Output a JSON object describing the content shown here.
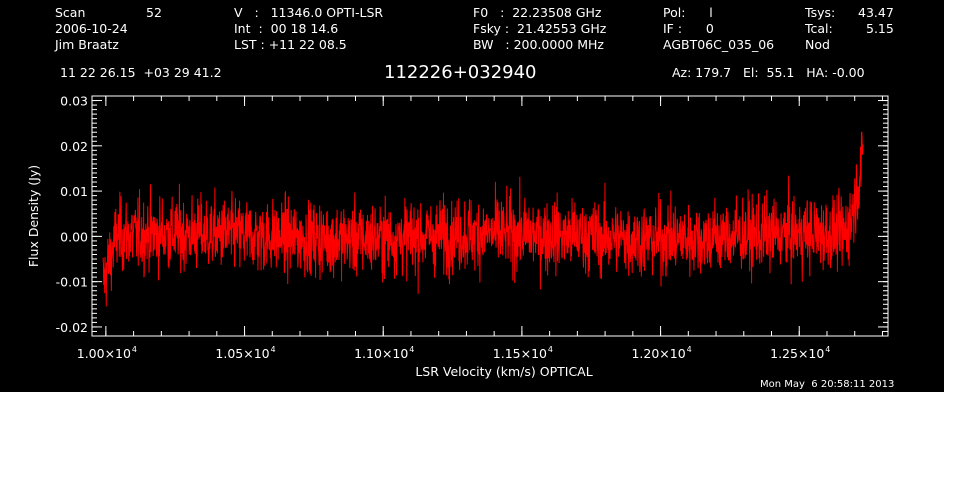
{
  "header": {
    "scan_label": "Scan",
    "scan_number": "52",
    "date": "2006-10-24",
    "observer": "Jim Braatz",
    "velocity": "V   :   11346.0 OPTI-LSR",
    "int_time": "Int  :  00 18 14.6",
    "lst": "LST : +11 22 08.5",
    "f0": "F0   :  22.23508 GHz",
    "fsky": "Fsky :  21.42553 GHz",
    "bw": "BW   : 200.0000 MHz",
    "pol": "Pol:      l",
    "if_num": "IF :      0",
    "project": "AGBT06C_035_06",
    "tsys_label": "Tsys:",
    "tsys_value": "43.47",
    "tcal_label": "Tcal:",
    "tcal_value": "5.15",
    "mode": "Nod",
    "coords": "11 22 26.15  +03 29 41.2",
    "source": "112226+032940",
    "az_el_ha": "Az: 179.7   El:  55.1   HA: -0.00"
  },
  "timestamp": "Mon May  6 20:58:11 2013",
  "colors": {
    "background": "#000000",
    "axes": "#ffffff",
    "trace": "#ff0000"
  },
  "chart_data": {
    "type": "line",
    "xlabel": "LSR Velocity (km/s) OPTICAL",
    "ylabel": "Flux Density (Jy)",
    "xlim": [
      9950,
      12820
    ],
    "ylim": [
      -0.022,
      0.031
    ],
    "x_ticks": [
      10000,
      10500,
      11000,
      11500,
      12000,
      12500
    ],
    "x_tick_labels": [
      "1.00×10",
      "1.05×10",
      "1.10×10",
      "1.15×10",
      "1.20×10",
      "1.25×10"
    ],
    "x_tick_exponent": "4",
    "y_ticks": [
      -0.02,
      -0.01,
      0.0,
      0.01,
      0.02,
      0.03
    ],
    "y_tick_labels": [
      "-0.02",
      "-0.01",
      "0.00",
      "0.01",
      "0.02",
      "0.03"
    ],
    "grid": false,
    "series": [
      {
        "color": "#ff0000",
        "x_start": 9990,
        "x_end": 12730,
        "noise_rms_jy": 0.004,
        "min_value": -0.018,
        "max_value": 0.023,
        "end_rise_value": 0.018
      }
    ]
  }
}
